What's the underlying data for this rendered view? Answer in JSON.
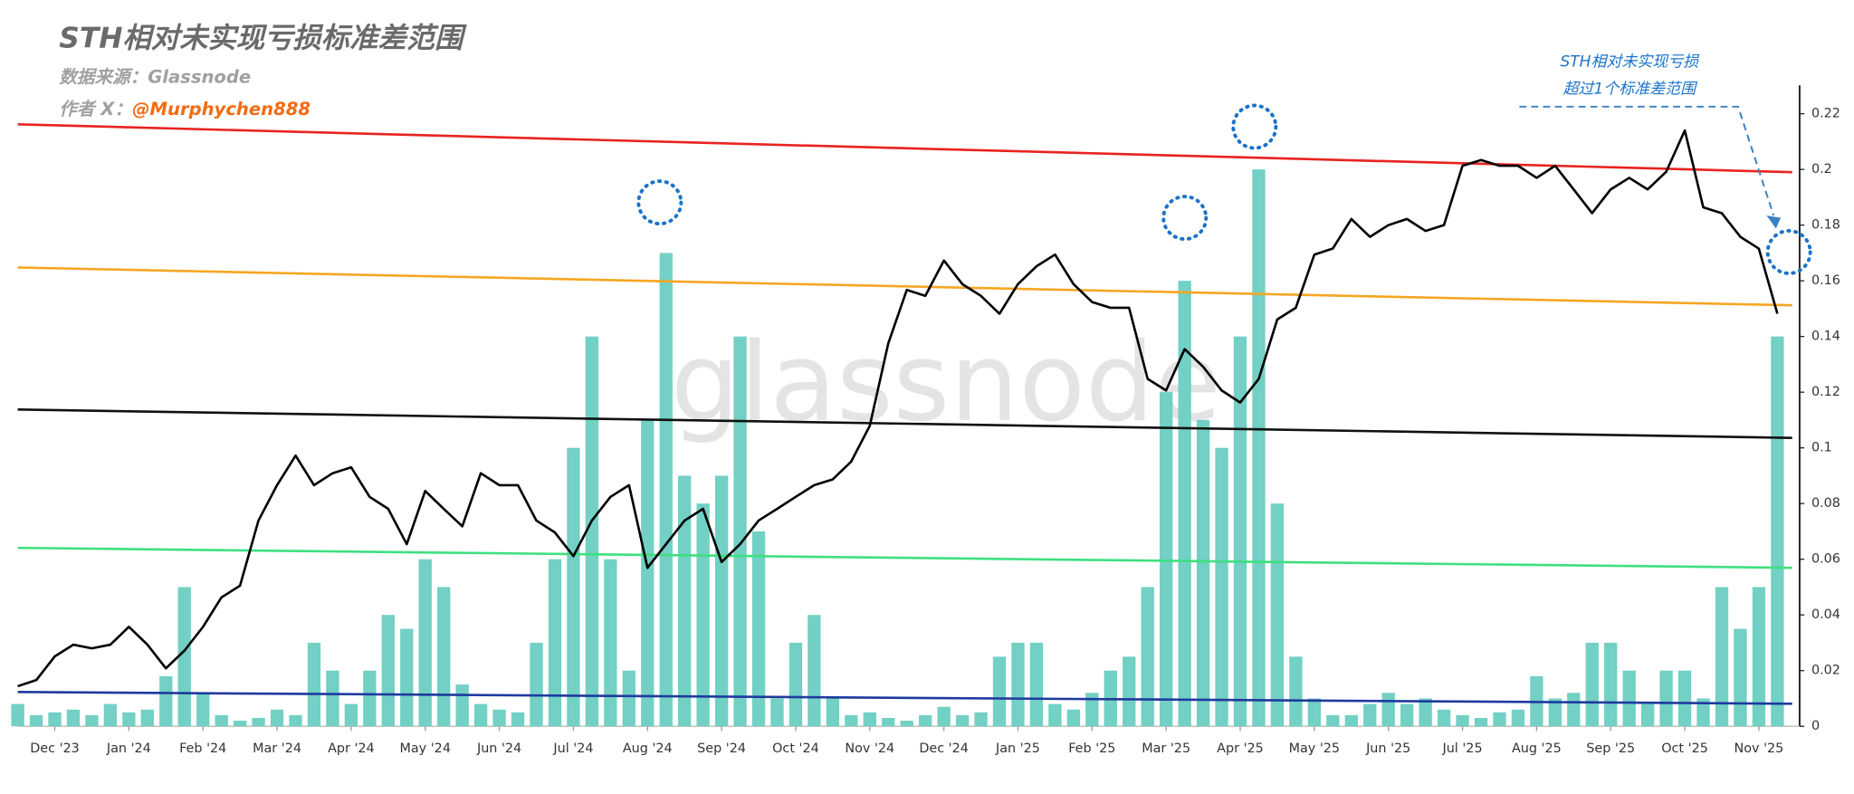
{
  "chart_data": {
    "type": "combo",
    "title": "STH相对未实现亏损标准差范围",
    "source": "数据来源：Glassnode",
    "author_label": "作者 X：",
    "author": "@Murphychen888",
    "watermark": "glassnode",
    "annotations": [
      "STH相对未实现亏损",
      "超过1个标准差范围"
    ],
    "xlim": [
      -0.5,
      23.55
    ],
    "ylim": [
      0,
      0.22
    ],
    "yticks": [
      0,
      0.02,
      0.04,
      0.06,
      0.08,
      0.1,
      0.12,
      0.14,
      0.16,
      0.18,
      0.2,
      0.22
    ],
    "xticks": [
      {
        "value": 0,
        "label": "Dec '23"
      },
      {
        "value": 1,
        "label": "Jan '24"
      },
      {
        "value": 2,
        "label": "Feb '24"
      },
      {
        "value": 3,
        "label": "Mar '24"
      },
      {
        "value": 4,
        "label": "Apr '24"
      },
      {
        "value": 5,
        "label": "May '24"
      },
      {
        "value": 6,
        "label": "Jun '24"
      },
      {
        "value": 7,
        "label": "Jul '24"
      },
      {
        "value": 8,
        "label": "Aug '24"
      },
      {
        "value": 9,
        "label": "Sep '24"
      },
      {
        "value": 10,
        "label": "Oct '24"
      },
      {
        "value": 11,
        "label": "Nov '24"
      },
      {
        "value": 12,
        "label": "Dec '24"
      },
      {
        "value": 13,
        "label": "Jan '25"
      },
      {
        "value": 14,
        "label": "Feb '25"
      },
      {
        "value": 15,
        "label": "Mar '25"
      },
      {
        "value": 16,
        "label": "Apr '25"
      },
      {
        "value": 17,
        "label": "May '25"
      },
      {
        "value": 18,
        "label": "Jun '25"
      },
      {
        "value": 19,
        "label": "Jul '25"
      },
      {
        "value": 20,
        "label": "Aug '25"
      },
      {
        "value": 21,
        "label": "Sep '25"
      },
      {
        "value": 22,
        "label": "Oct '25"
      },
      {
        "value": 23,
        "label": "Nov '25"
      }
    ],
    "x": [
      -0.5,
      -0.25,
      0,
      0.25,
      0.5,
      0.75,
      1,
      1.25,
      1.5,
      1.75,
      2,
      2.25,
      2.5,
      2.75,
      3,
      3.25,
      3.5,
      3.75,
      4,
      4.25,
      4.5,
      4.75,
      5,
      5.25,
      5.5,
      5.75,
      6,
      6.25,
      6.5,
      6.75,
      7,
      7.25,
      7.5,
      7.75,
      8,
      8.25,
      8.5,
      8.75,
      9,
      9.25,
      9.5,
      9.75,
      10,
      10.25,
      10.5,
      10.75,
      11,
      11.25,
      11.5,
      11.75,
      12,
      12.25,
      12.5,
      12.75,
      13,
      13.25,
      13.5,
      13.75,
      14,
      14.25,
      14.5,
      14.75,
      15,
      15.25,
      15.5,
      15.75,
      16,
      16.25,
      16.5,
      16.75,
      17,
      17.25,
      17.5,
      17.75,
      18,
      18.25,
      18.5,
      18.75,
      19,
      19.25,
      19.5,
      19.75,
      20,
      20.25,
      20.5,
      20.75,
      21,
      21.25,
      21.5,
      21.75,
      22,
      22.25,
      22.5,
      22.75,
      23,
      23.25
    ],
    "series": [
      {
        "type": "bar",
        "color": "#72d0c4",
        "values": [
          0.008,
          0.004,
          0.005,
          0.006,
          0.004,
          0.008,
          0.005,
          0.006,
          0.018,
          0.05,
          0.012,
          0.004,
          0.002,
          0.003,
          0.006,
          0.004,
          0.03,
          0.02,
          0.008,
          0.02,
          0.04,
          0.035,
          0.06,
          0.05,
          0.015,
          0.008,
          0.006,
          0.005,
          0.03,
          0.06,
          0.1,
          0.14,
          0.06,
          0.02,
          0.11,
          0.17,
          0.09,
          0.08,
          0.09,
          0.14,
          0.07,
          0.01,
          0.03,
          0.04,
          0.01,
          0.004,
          0.005,
          0.003,
          0.002,
          0.004,
          0.007,
          0.004,
          0.005,
          0.025,
          0.03,
          0.03,
          0.008,
          0.006,
          0.012,
          0.02,
          0.025,
          0.05,
          0.12,
          0.16,
          0.11,
          0.1,
          0.14,
          0.2,
          0.08,
          0.025,
          0.01,
          0.004,
          0.004,
          0.008,
          0.012,
          0.008,
          0.01,
          0.006,
          0.004,
          0.003,
          0.005,
          0.006,
          0.018,
          0.01,
          0.012,
          0.03,
          0.03,
          0.02,
          0.008,
          0.02,
          0.02,
          0.01,
          0.05,
          0.035,
          0.05,
          0.14
        ]
      },
      {
        "type": "line",
        "color": "#e8231f",
        "x": [
          -0.5,
          23.45
        ],
        "values": [
          0.2162,
          0.199
        ]
      },
      {
        "type": "line",
        "color": "#f5a623",
        "x": [
          -0.5,
          23.45
        ],
        "values": [
          0.1648,
          0.1512
        ]
      },
      {
        "type": "line",
        "color": "#111111",
        "x": [
          -0.5,
          23.45
        ],
        "values": [
          0.1138,
          0.1036
        ]
      },
      {
        "type": "line",
        "color": "#3ee07f",
        "x": [
          -0.5,
          23.45
        ],
        "values": [
          0.0641,
          0.0569
        ]
      },
      {
        "type": "line",
        "color": "#1f3a9e",
        "x": [
          -0.5,
          23.45
        ],
        "values": [
          0.0123,
          0.0081
        ]
      },
      {
        "type": "line",
        "color": "#000000",
        "values": [
          0.0144,
          0.0166,
          0.0251,
          0.0293,
          0.028,
          0.0293,
          0.0357,
          0.0293,
          0.0208,
          0.0272,
          0.0357,
          0.0463,
          0.0505,
          0.0739,
          0.0866,
          0.0972,
          0.0866,
          0.0909,
          0.093,
          0.0824,
          0.0781,
          0.0654,
          0.0845,
          0.0781,
          0.0718,
          0.0909,
          0.0866,
          0.0866,
          0.0739,
          0.0696,
          0.0611,
          0.0739,
          0.0824,
          0.0866,
          0.0569,
          0.0654,
          0.0739,
          0.0781,
          0.059,
          0.0654,
          0.0739,
          0.0781,
          0.0824,
          0.0866,
          0.0887,
          0.0951,
          0.1079,
          0.1376,
          0.1567,
          0.1546,
          0.1673,
          0.1588,
          0.1546,
          0.1482,
          0.1588,
          0.1652,
          0.1694,
          0.1588,
          0.1524,
          0.1503,
          0.1503,
          0.1248,
          0.1206,
          0.1355,
          0.1291,
          0.1206,
          0.1163,
          0.1248,
          0.1461,
          0.1503,
          0.1694,
          0.1716,
          0.1822,
          0.1758,
          0.18,
          0.1822,
          0.1779,
          0.18,
          0.2013,
          0.2034,
          0.2013,
          0.2013,
          0.197,
          0.2013,
          0.1928,
          0.1843,
          0.1928,
          0.197,
          0.1928,
          0.1992,
          0.214,
          0.1864,
          0.1843,
          0.1758,
          0.1716,
          0.1482
        ]
      }
    ]
  }
}
